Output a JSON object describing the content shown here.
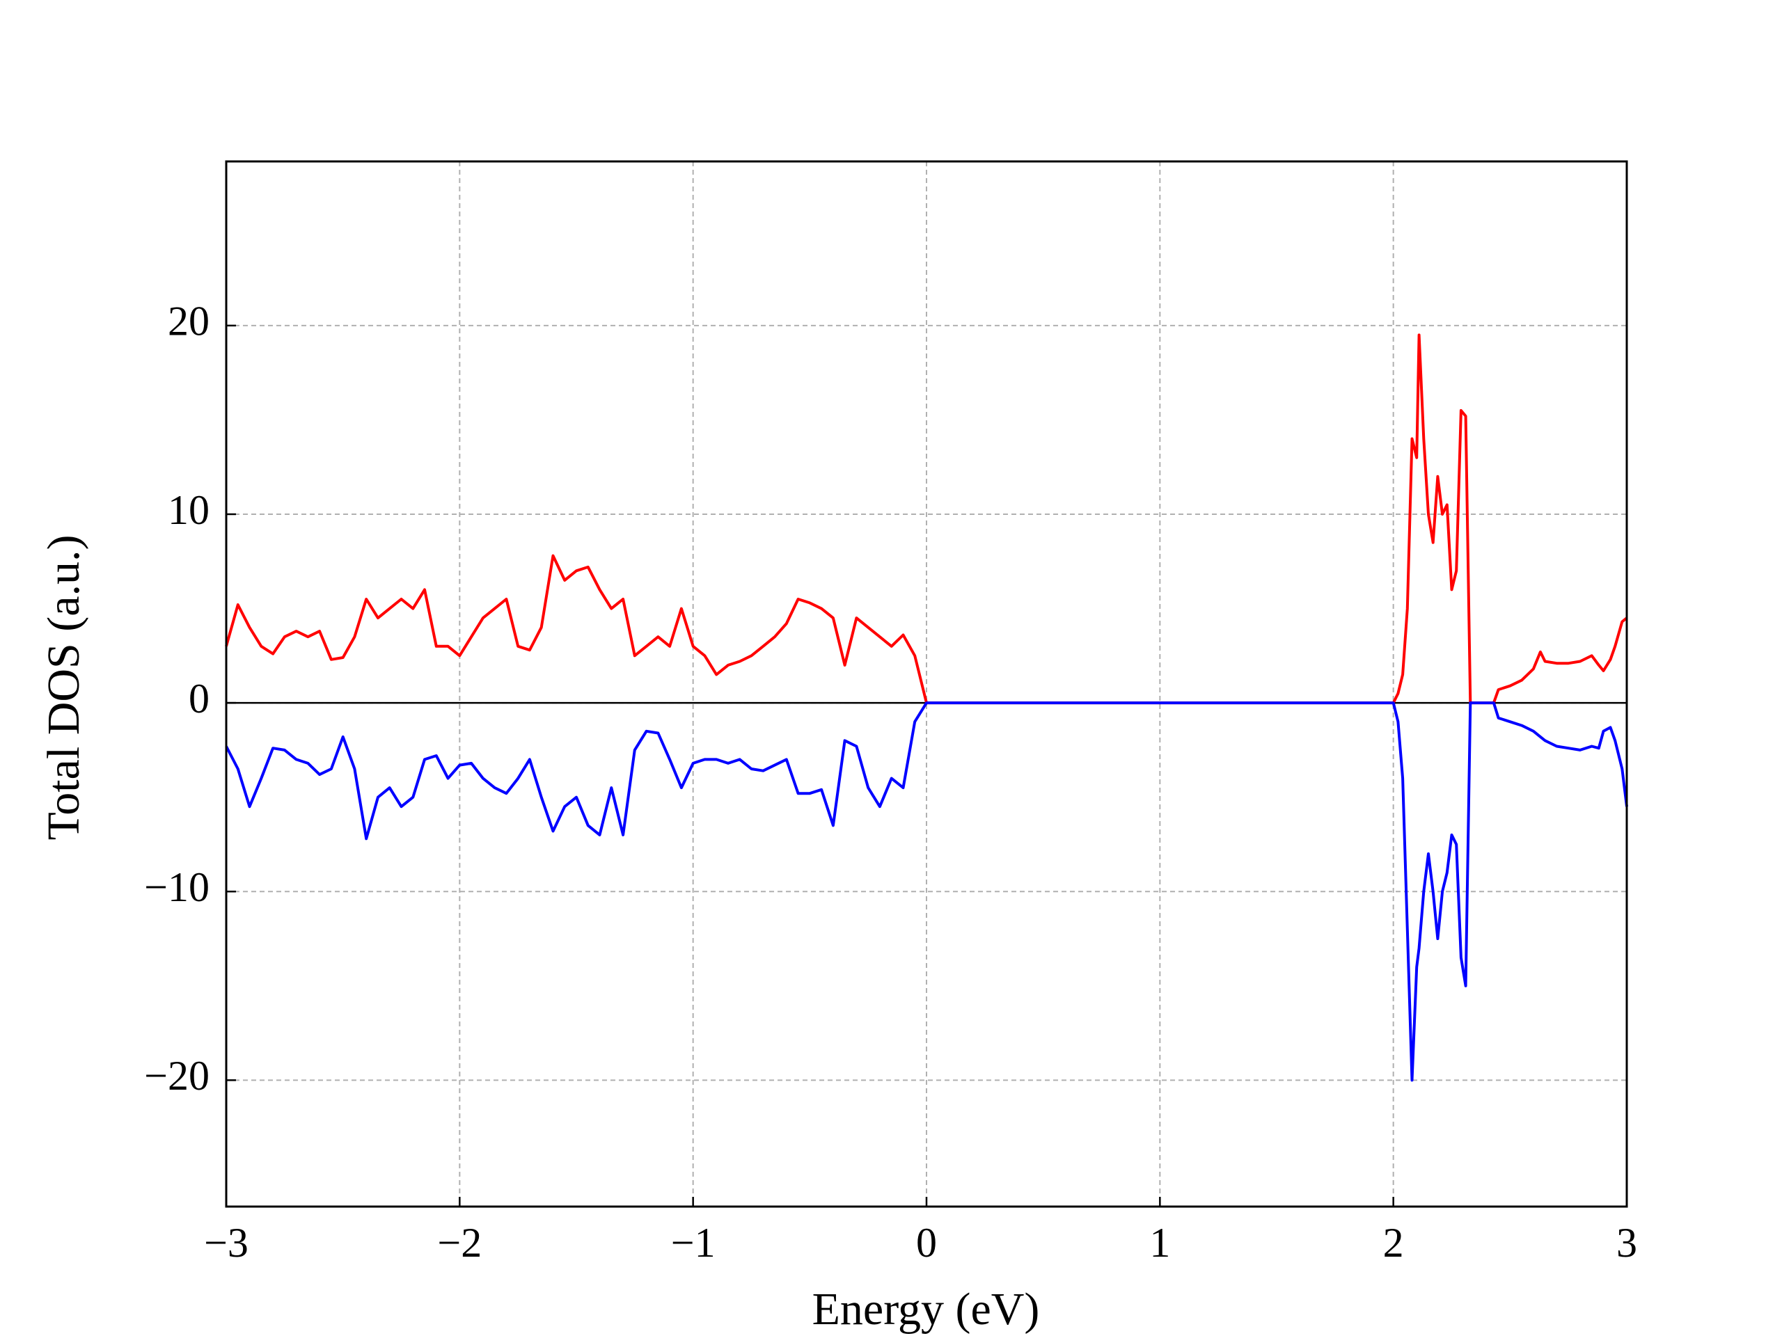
{
  "chart_data": {
    "type": "line",
    "xlabel": "Energy (eV)",
    "ylabel": "Total DOS (a.u.)",
    "x": [
      -3,
      -2.95,
      -2.9,
      -2.85,
      -2.8,
      -2.75,
      -2.7,
      -2.65,
      -2.6,
      -2.55,
      -2.5,
      -2.45,
      -2.4,
      -2.35,
      -2.3,
      -2.25,
      -2.2,
      -2.15,
      -2.1,
      -2.05,
      -2,
      -1.95,
      -1.9,
      -1.85,
      -1.8,
      -1.75,
      -1.7,
      -1.65,
      -1.6,
      -1.55,
      -1.5,
      -1.45,
      -1.4,
      -1.35,
      -1.3,
      -1.25,
      -1.2,
      -1.15,
      -1.1,
      -1.05,
      -1,
      -0.95,
      -0.9,
      -0.85,
      -0.8,
      -0.75,
      -0.7,
      -0.65,
      -0.6,
      -0.55,
      -0.5,
      -0.45,
      -0.4,
      -0.35,
      -0.3,
      -0.25,
      -0.2,
      -0.15,
      -0.1,
      -0.05,
      0,
      0.5,
      1,
      1.5,
      2,
      2.02,
      2.04,
      2.06,
      2.08,
      2.1,
      2.11,
      2.13,
      2.15,
      2.17,
      2.19,
      2.21,
      2.23,
      2.25,
      2.27,
      2.29,
      2.31,
      2.33,
      2.43,
      2.45,
      2.5,
      2.55,
      2.6,
      2.63,
      2.65,
      2.7,
      2.75,
      2.8,
      2.85,
      2.88,
      2.9,
      2.93,
      2.95,
      2.98,
      3
    ],
    "series": [
      {
        "color": "#ff0000",
        "values": [
          3,
          5.2,
          4,
          3,
          2.6,
          3.5,
          3.8,
          3.5,
          3.8,
          2.3,
          2.4,
          3.5,
          5.5,
          4.5,
          5,
          5.5,
          5,
          6,
          3,
          3,
          2.5,
          3.5,
          4.5,
          5,
          5.5,
          3,
          2.8,
          4,
          7.8,
          6.5,
          7,
          7.2,
          6,
          5,
          5.5,
          2.5,
          3,
          3.5,
          3,
          5,
          3,
          2.5,
          1.5,
          2,
          2.2,
          2.5,
          3,
          3.5,
          4.2,
          5.5,
          5.3,
          5,
          4.5,
          2,
          4.5,
          4,
          3.5,
          3,
          3.6,
          2.5,
          0,
          0,
          0,
          0,
          0,
          0.5,
          1.5,
          5,
          14,
          13,
          19.5,
          14,
          10,
          8.5,
          12,
          10,
          10.5,
          6,
          7,
          15.5,
          15.2,
          0,
          0,
          0.7,
          0.9,
          1.2,
          1.8,
          2.7,
          2.2,
          2.1,
          2.1,
          2.2,
          2.5,
          2,
          1.7,
          2.3,
          3,
          4.3,
          4.5
        ]
      },
      {
        "color": "#0000ff",
        "values": [
          -2.3,
          -3.5,
          -5.5,
          -4,
          -2.4,
          -2.5,
          -3,
          -3.2,
          -3.8,
          -3.5,
          -1.8,
          -3.5,
          -7.2,
          -5,
          -4.5,
          -5.5,
          -5,
          -3,
          -2.8,
          -4,
          -3.3,
          -3.2,
          -4,
          -4.5,
          -4.8,
          -4,
          -3,
          -5,
          -6.8,
          -5.5,
          -5,
          -6.5,
          -7,
          -4.5,
          -7,
          -2.5,
          -1.5,
          -1.6,
          -3,
          -4.5,
          -3.2,
          -3,
          -3,
          -3.2,
          -3,
          -3.5,
          -3.6,
          -3.3,
          -3,
          -4.8,
          -4.8,
          -4.6,
          -6.5,
          -2,
          -2.3,
          -4.5,
          -5.5,
          -4,
          -4.5,
          -1,
          0,
          0,
          0,
          0,
          0,
          -1,
          -4,
          -12,
          -20,
          -14,
          -13,
          -10,
          -8,
          -10,
          -12.5,
          -10,
          -9,
          -7,
          -7.5,
          -13.5,
          -15,
          0,
          0,
          -0.8,
          -1,
          -1.2,
          -1.5,
          -1.8,
          -2,
          -2.3,
          -2.4,
          -2.5,
          -2.3,
          -2.4,
          -1.5,
          -1.3,
          -2,
          -3.5,
          -5.5
        ]
      }
    ],
    "xlim": [
      -3,
      3
    ],
    "xticks": [
      {
        "value": -3,
        "label": "−3"
      },
      {
        "value": -2,
        "label": "−2"
      },
      {
        "value": -1,
        "label": "−1"
      },
      0,
      1,
      2,
      3
    ],
    "ylim": [
      -26.7,
      28.7
    ],
    "yticks": [
      {
        "value": -20,
        "label": "−20"
      },
      {
        "value": -10,
        "label": "−10"
      },
      0,
      10,
      20
    ],
    "grid": true,
    "zero_line": true
  }
}
